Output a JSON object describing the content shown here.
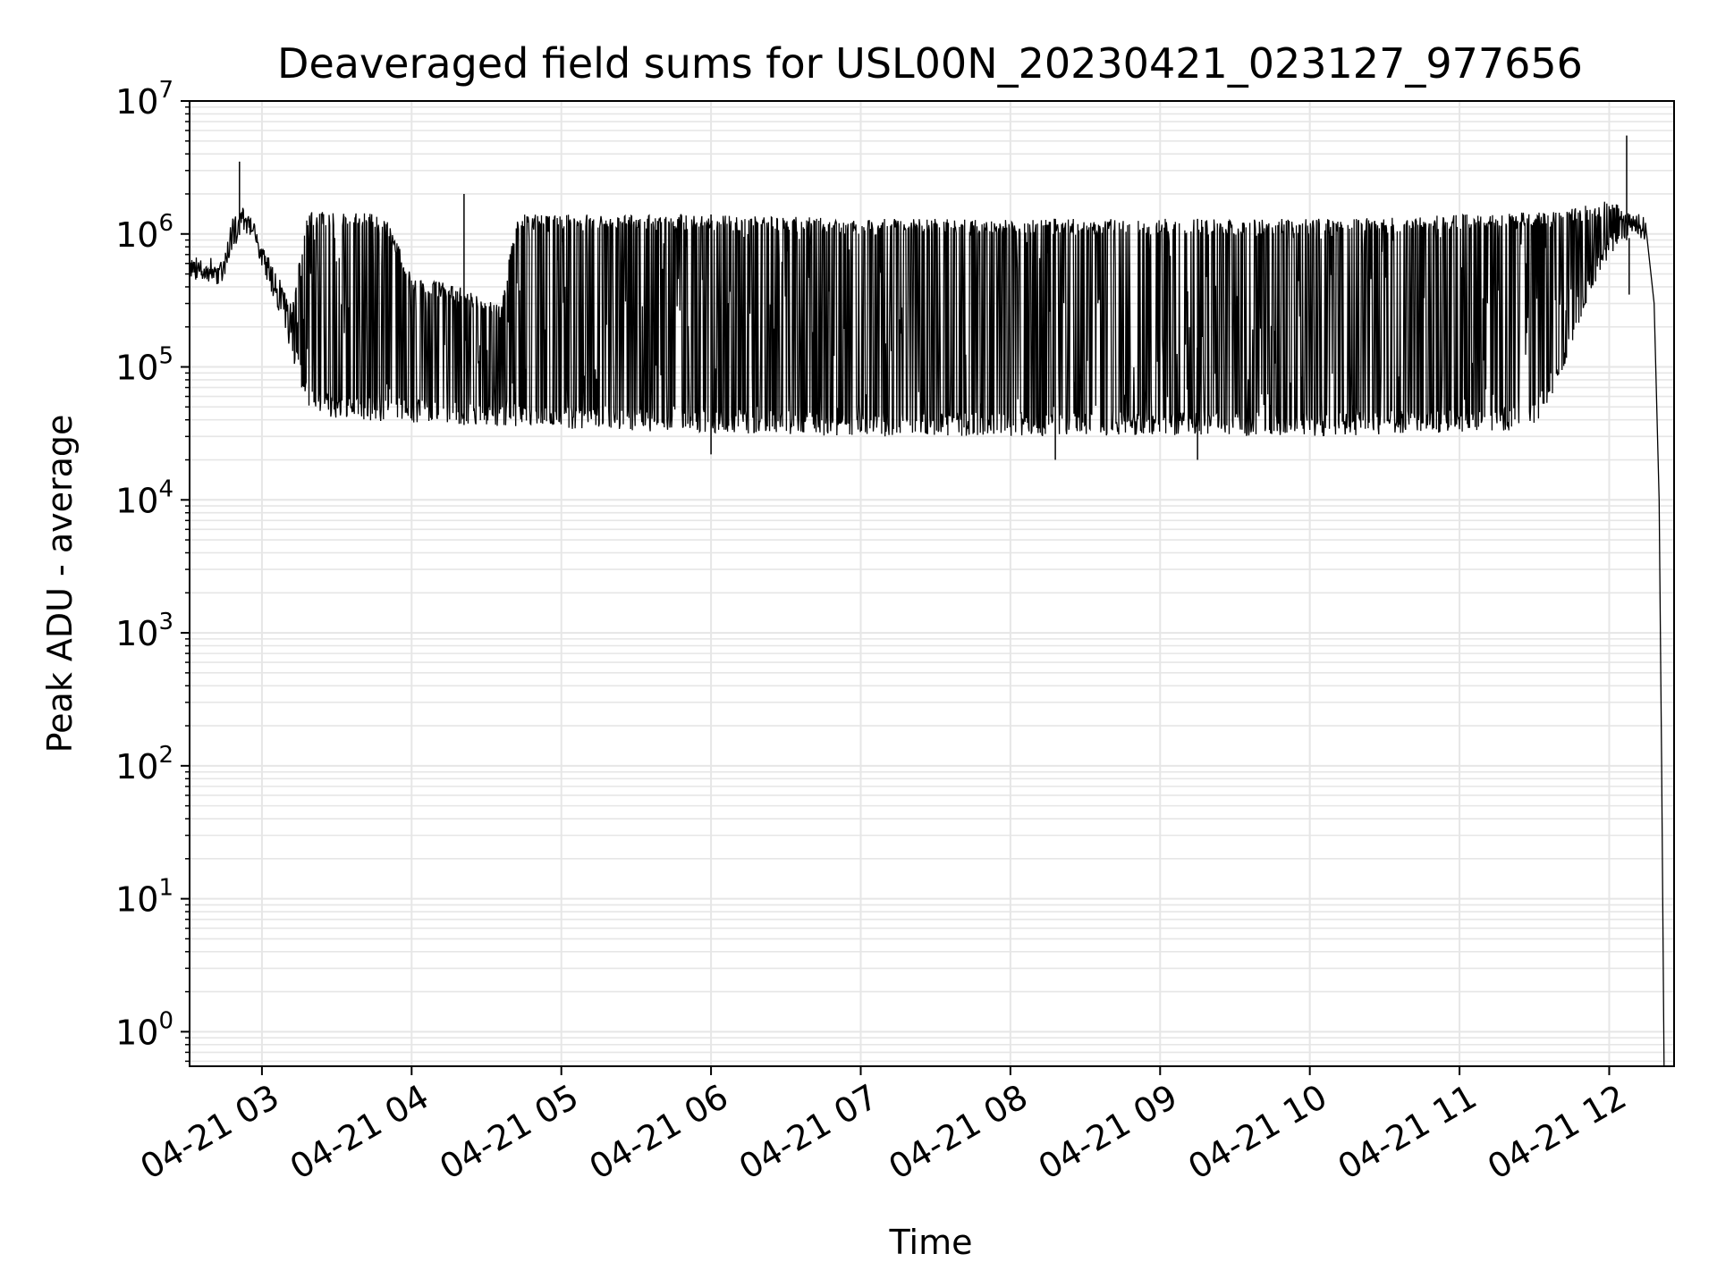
{
  "chart_data": {
    "type": "line",
    "title": "Deaveraged field sums for USL00N_20230421_023127_977656",
    "xlabel": "Time",
    "ylabel": "Peak ADU - average",
    "yscale": "log",
    "ylim": [
      0.55,
      10000000
    ],
    "xlim": [
      "2023-04-21 02:31",
      "2023-04-21 12:26"
    ],
    "grid": "major and minor, both axes",
    "line_color": "#000000",
    "grid_color": "#e6e6e6",
    "x_ticks": [
      {
        "t": "2023-04-21 03:00",
        "label": "04-21 03"
      },
      {
        "t": "2023-04-21 04:00",
        "label": "04-21 04"
      },
      {
        "t": "2023-04-21 05:00",
        "label": "04-21 05"
      },
      {
        "t": "2023-04-21 06:00",
        "label": "04-21 06"
      },
      {
        "t": "2023-04-21 07:00",
        "label": "04-21 07"
      },
      {
        "t": "2023-04-21 08:00",
        "label": "04-21 08"
      },
      {
        "t": "2023-04-21 09:00",
        "label": "04-21 09"
      },
      {
        "t": "2023-04-21 10:00",
        "label": "04-21 10"
      },
      {
        "t": "2023-04-21 11:00",
        "label": "04-21 11"
      },
      {
        "t": "2023-04-21 12:00",
        "label": "04-21 12"
      }
    ],
    "y_ticks": [
      {
        "value": 1,
        "base": "10",
        "exp": "0"
      },
      {
        "value": 10,
        "base": "10",
        "exp": "1"
      },
      {
        "value": 100,
        "base": "10",
        "exp": "2"
      },
      {
        "value": 1000,
        "base": "10",
        "exp": "3"
      },
      {
        "value": 10000,
        "base": "10",
        "exp": "4"
      },
      {
        "value": 100000,
        "base": "10",
        "exp": "5"
      },
      {
        "value": 1000000,
        "base": "10",
        "exp": "6"
      },
      {
        "value": 10000000,
        "base": "10",
        "exp": "7"
      }
    ],
    "series": [
      {
        "upper_envelope": [
          [
            "2023-04-21 02:31",
            700000
          ],
          [
            "2023-04-21 02:38",
            550000
          ],
          [
            "2023-04-21 02:44",
            550000
          ],
          [
            "2023-04-21 02:48",
            1300000
          ],
          [
            "2023-04-21 02:52",
            1500000
          ],
          [
            "2023-04-21 02:56",
            1300000
          ],
          [
            "2023-04-21 03:04",
            600000
          ],
          [
            "2023-04-21 03:12",
            300000
          ],
          [
            "2023-04-21 03:18",
            1500000
          ],
          [
            "2023-04-21 03:40",
            1500000
          ],
          [
            "2023-04-21 03:50",
            1300000
          ],
          [
            "2023-04-21 04:00",
            500000
          ],
          [
            "2023-04-21 04:20",
            400000
          ],
          [
            "2023-04-21 04:36",
            300000
          ],
          [
            "2023-04-21 04:42",
            1400000
          ],
          [
            "2023-04-21 06:00",
            1400000
          ],
          [
            "2023-04-21 07:00",
            1300000
          ],
          [
            "2023-04-21 08:00",
            1300000
          ],
          [
            "2023-04-21 09:00",
            1300000
          ],
          [
            "2023-04-21 10:00",
            1300000
          ],
          [
            "2023-04-21 11:00",
            1400000
          ],
          [
            "2023-04-21 11:40",
            1500000
          ],
          [
            "2023-04-21 12:00",
            1800000
          ],
          [
            "2023-04-21 12:10",
            1400000
          ],
          [
            "2023-04-21 12:15",
            1000000
          ]
        ],
        "lower_envelope": [
          [
            "2023-04-21 02:31",
            450000
          ],
          [
            "2023-04-21 02:38",
            440000
          ],
          [
            "2023-04-21 02:44",
            430000
          ],
          [
            "2023-04-21 02:48",
            700000
          ],
          [
            "2023-04-21 02:52",
            1100000
          ],
          [
            "2023-04-21 02:56",
            900000
          ],
          [
            "2023-04-21 03:04",
            350000
          ],
          [
            "2023-04-21 03:12",
            120000
          ],
          [
            "2023-04-21 03:18",
            50000
          ],
          [
            "2023-04-21 03:30",
            40000
          ],
          [
            "2023-04-21 04:00",
            38000
          ],
          [
            "2023-04-21 04:30",
            36000
          ],
          [
            "2023-04-21 05:00",
            34000
          ],
          [
            "2023-04-21 06:00",
            32000
          ],
          [
            "2023-04-21 07:00",
            30000
          ],
          [
            "2023-04-21 08:00",
            30000
          ],
          [
            "2023-04-21 09:00",
            30000
          ],
          [
            "2023-04-21 10:00",
            30000
          ],
          [
            "2023-04-21 11:00",
            32000
          ],
          [
            "2023-04-21 11:30",
            34000
          ],
          [
            "2023-04-21 11:40",
            80000
          ],
          [
            "2023-04-21 11:50",
            280000
          ],
          [
            "2023-04-21 12:00",
            700000
          ],
          [
            "2023-04-21 12:10",
            1000000
          ],
          [
            "2023-04-21 12:15",
            900000
          ]
        ],
        "spikes": [
          [
            "2023-04-21 02:51",
            3500000
          ],
          [
            "2023-04-21 04:21",
            2000000
          ],
          [
            "2023-04-21 06:00",
            22000
          ],
          [
            "2023-04-21 08:18",
            20000
          ],
          [
            "2023-04-21 09:15",
            20000
          ],
          [
            "2023-04-21 12:07",
            5500000
          ],
          [
            "2023-04-21 12:08",
            350000
          ]
        ],
        "tail": [
          [
            "2023-04-21 12:15",
            1000000
          ],
          [
            "2023-04-21 12:18",
            300000
          ],
          [
            "2023-04-21 12:20",
            10000
          ],
          [
            "2023-04-21 12:21",
            100
          ],
          [
            "2023-04-21 12:22",
            0.55
          ]
        ]
      }
    ]
  }
}
